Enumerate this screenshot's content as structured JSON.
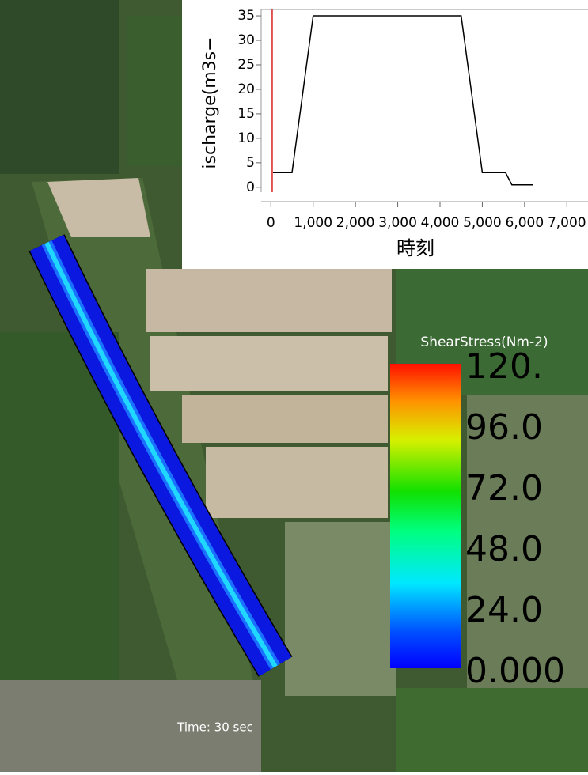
{
  "chart_data": {
    "type": "line",
    "ylabel": "ischarge(m3s−",
    "xlabel": "時刻",
    "x": [
      50,
      500,
      1000,
      4500,
      5000,
      5550,
      5700,
      6200
    ],
    "values": [
      3,
      3,
      35,
      35,
      3,
      3,
      0.5,
      0.5
    ],
    "color": "#000000",
    "current_time": 30,
    "current_time_color": "#e05050",
    "xlim": [
      -230,
      7500
    ],
    "ylim": [
      -1,
      36.3
    ],
    "xticks": [
      0,
      {
        "value": 1000,
        "label": "1,000"
      },
      {
        "value": 2000,
        "label": "2,000"
      },
      {
        "value": 3000,
        "label": "3,000"
      },
      {
        "value": 4000,
        "label": "4,000"
      },
      {
        "value": 5000,
        "label": "5,000"
      },
      {
        "value": 6000,
        "label": "6,000"
      },
      {
        "value": 7000,
        "label": "7,000"
      }
    ],
    "yticks": [
      0,
      5,
      10,
      15,
      20,
      25,
      30,
      35
    ]
  },
  "colorbar": {
    "title": "ShearStress(Nm-2)",
    "lim": [
      0,
      120
    ],
    "ticks": [
      {
        "value": 120,
        "label": "120."
      },
      {
        "value": 96,
        "label": "96.0"
      },
      {
        "value": 72,
        "label": "72.0"
      },
      {
        "value": 48,
        "label": "48.0"
      },
      {
        "value": 24,
        "label": "24.0"
      },
      {
        "value": 0,
        "label": "0.000"
      }
    ]
  },
  "time_label": "Time: 30 sec"
}
